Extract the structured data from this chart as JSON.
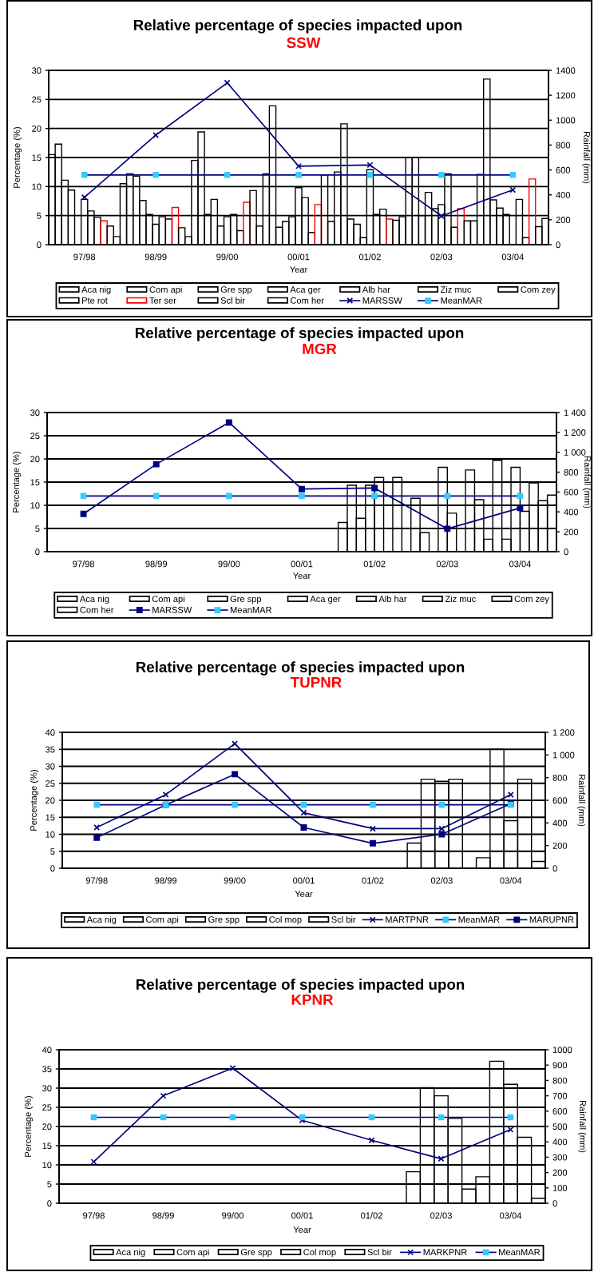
{
  "chart_data": [
    {
      "type": "bar",
      "title": "Relative percentage of species impacted upon",
      "subtitle": "SSW",
      "xlabel": "Year",
      "ylabel": "Percentage (%)",
      "y2label": "Rainfall (mm)",
      "categories": [
        "97/98",
        "98/99",
        "99/00",
        "00/01",
        "01/02",
        "02/03",
        "03/04"
      ],
      "ylim": [
        0,
        30
      ],
      "yticks": [
        0,
        5,
        10,
        15,
        20,
        25,
        30
      ],
      "y2lim": [
        0,
        1400
      ],
      "y2ticks": [
        0,
        200,
        400,
        600,
        800,
        1000,
        1200,
        1400
      ],
      "grid": true,
      "legend": "bottom",
      "series": [
        {
          "name": "Aca nig",
          "color": "#000000",
          "values": [
            15.5,
            10.5,
            14.5,
            12.2,
            12.5,
            15.0,
            12.1
          ]
        },
        {
          "name": "Com api",
          "color": "#000000",
          "values": [
            17.3,
            12.2,
            19.4,
            23.9,
            20.8,
            15.0,
            28.5
          ]
        },
        {
          "name": "Gre spp",
          "color": "#000000",
          "values": [
            11.1,
            11.8,
            5.2,
            3.0,
            4.4,
            5.0,
            7.7
          ]
        },
        {
          "name": "Aca ger",
          "color": "#000000",
          "values": [
            9.4,
            7.6,
            7.8,
            4.0,
            3.5,
            9.0,
            6.3
          ]
        },
        {
          "name": "Alb har",
          "color": "#000000",
          "values": [
            null,
            5.2,
            3.2,
            4.8,
            1.2,
            6.2,
            5.2
          ]
        },
        {
          "name": "Ziz muc",
          "color": "#000000",
          "values": [
            7.8,
            3.5,
            4.8,
            9.8,
            12.9,
            6.9,
            null
          ]
        },
        {
          "name": "Com zey",
          "color": "#000000",
          "values": [
            5.8,
            4.8,
            5.2,
            8.1,
            5.2,
            12.2,
            7.8
          ]
        },
        {
          "name": "Pte rot",
          "color": "#000000",
          "values": [
            4.7,
            4.4,
            2.4,
            2.1,
            6.1,
            3.0,
            1.2
          ]
        },
        {
          "name": "Ter ser",
          "color": "#ff0000",
          "values": [
            4.1,
            6.4,
            7.3,
            6.9,
            4.4,
            6.2,
            11.3
          ]
        },
        {
          "name": "Scl bir",
          "color": "#000000",
          "values": [
            3.2,
            2.9,
            9.3,
            12.0,
            4.2,
            4.1,
            3.1
          ]
        },
        {
          "name": "Com her",
          "color": "#000000",
          "values": [
            1.4,
            1.4,
            3.2,
            4.0,
            4.8,
            4.1,
            4.5
          ]
        },
        {
          "name": "MARSSW",
          "type": "line",
          "axis": "y2",
          "marker": "cross",
          "color": "#000080",
          "values": [
            380,
            880,
            1300,
            630,
            640,
            230,
            440
          ]
        },
        {
          "name": "MeanMAR",
          "type": "line",
          "axis": "y2",
          "marker": "square",
          "color": "#000080",
          "colors": [
            "#33ccff",
            "#33ccff",
            "#33ccff",
            "#33ccff",
            "#33ccff",
            "#33ccff",
            "#33ccff"
          ],
          "values": [
            560,
            560,
            560,
            560,
            560,
            560,
            560
          ]
        }
      ]
    },
    {
      "type": "bar",
      "title": "Relative percentage of species impacted upon",
      "subtitle": "MGR",
      "xlabel": "Year",
      "ylabel": "Percentage (%)",
      "y2label": "Rainfall (mm)",
      "categories": [
        "97/98",
        "98/99",
        "99/00",
        "00/01",
        "01/02",
        "02/03",
        "03/04"
      ],
      "ylim": [
        0,
        30
      ],
      "yticks": [
        0,
        5,
        10,
        15,
        20,
        25,
        30
      ],
      "y2lim": [
        0,
        1400
      ],
      "y2ticks": [
        0,
        200,
        400,
        600,
        800,
        {
          "value": 1000,
          "label": "1 000"
        },
        {
          "value": 1200,
          "label": "1 200"
        },
        {
          "value": 1400,
          "label": "1 400"
        }
      ],
      "grid": true,
      "legend": "bottom",
      "series": [
        {
          "name": "Aca nig",
          "color": "#000000",
          "values": [
            null,
            null,
            null,
            null,
            6.3,
            11.5,
            2.7
          ]
        },
        {
          "name": "Com api",
          "color": "#000000",
          "values": [
            null,
            null,
            null,
            null,
            14.3,
            4.1,
            19.7
          ]
        },
        {
          "name": "Gre spp",
          "color": "#000000",
          "values": [
            null,
            null,
            null,
            null,
            7.2,
            null,
            2.7
          ]
        },
        {
          "name": "Aca ger",
          "color": "#000000",
          "values": [
            null,
            null,
            null,
            null,
            14.3,
            18.2,
            18.2
          ]
        },
        {
          "name": "Alb har",
          "color": "#000000",
          "values": [
            null,
            null,
            null,
            null,
            16.0,
            8.3,
            8.7
          ]
        },
        {
          "name": "Ziz muc",
          "color": "#000000",
          "values": [
            null,
            null,
            null,
            null,
            null,
            null,
            14.8
          ]
        },
        {
          "name": "Com zey",
          "color": "#000000",
          "values": [
            null,
            null,
            null,
            null,
            16.0,
            17.6,
            11.0
          ]
        },
        {
          "name": "Com her",
          "color": "#000000",
          "values": [
            null,
            null,
            null,
            null,
            null,
            11.2,
            12.2
          ]
        },
        {
          "name": "MARSSW",
          "type": "line",
          "axis": "y2",
          "marker": "square",
          "color": "#000080",
          "values": [
            380,
            880,
            1300,
            630,
            640,
            230,
            440
          ]
        },
        {
          "name": "MeanMAR",
          "type": "line",
          "axis": "y2",
          "marker": "square",
          "color": "#000080",
          "colors": [
            "#33ccff",
            "#33ccff",
            "#33ccff",
            "#33ccff",
            "#33ccff",
            "#33ccff",
            "#33ccff"
          ],
          "values": [
            560,
            560,
            560,
            560,
            560,
            560,
            560
          ]
        }
      ]
    },
    {
      "type": "bar",
      "title": "Relative percentage of species impacted upon",
      "subtitle": "TUPNR",
      "xlabel": "Year",
      "ylabel": "Percentage (%)",
      "y2label": "Rainfall (mm)",
      "categories": [
        "97/98",
        "98/99",
        "99/00",
        "00/01",
        "01/02",
        "02/03",
        "03/04"
      ],
      "ylim": [
        0,
        40
      ],
      "yticks": [
        0,
        5,
        10,
        15,
        20,
        25,
        30,
        35,
        40
      ],
      "y2lim": [
        0,
        1200
      ],
      "y2ticks": [
        0,
        200,
        400,
        600,
        800,
        {
          "value": 1000,
          "label": "1 000"
        },
        {
          "value": 1200,
          "label": "1 200"
        }
      ],
      "grid": true,
      "legend": "bottom",
      "series": [
        {
          "name": "Aca nig",
          "color": "#000000",
          "values": [
            null,
            null,
            null,
            null,
            null,
            7.4,
            3.1
          ]
        },
        {
          "name": "Com api",
          "color": "#000000",
          "values": [
            null,
            null,
            null,
            null,
            null,
            26.2,
            35.0
          ]
        },
        {
          "name": "Gre spp",
          "color": "#000000",
          "values": [
            null,
            null,
            null,
            null,
            null,
            25.6,
            14.0
          ]
        },
        {
          "name": "Col mop",
          "color": "#000000",
          "values": [
            null,
            null,
            null,
            null,
            null,
            26.2,
            26.2
          ]
        },
        {
          "name": "Scl bir",
          "color": "#000000",
          "values": [
            null,
            null,
            null,
            null,
            null,
            null,
            2.0
          ]
        },
        {
          "name": "MARTPNR",
          "type": "line",
          "axis": "y2",
          "marker": "cross",
          "color": "#000080",
          "values": [
            360,
            650,
            1100,
            490,
            350,
            350,
            650
          ]
        },
        {
          "name": "MeanMAR",
          "type": "line",
          "axis": "y2",
          "marker": "square",
          "color": "#000080",
          "colors": [
            "#33ccff",
            "#33ccff",
            "#33ccff",
            "#33ccff",
            "#33ccff",
            "#33ccff",
            "#33ccff"
          ],
          "values": [
            560,
            560,
            560,
            560,
            560,
            560,
            560
          ]
        },
        {
          "name": "MARUPNR",
          "type": "line",
          "axis": "y2",
          "marker": "square",
          "color": "#000080",
          "values": [
            270,
            560,
            830,
            360,
            220,
            300,
            570
          ]
        }
      ]
    },
    {
      "type": "bar",
      "title": "Relative percentage of species impacted upon",
      "subtitle": "KPNR",
      "xlabel": "Year",
      "ylabel": "Percentage (%)",
      "y2label": "Rainfall (mm)",
      "categories": [
        "97/98",
        "98/99",
        "99/00",
        "00/01",
        "01/02",
        "02/03",
        "03/04"
      ],
      "ylim": [
        0,
        40
      ],
      "yticks": [
        0,
        5,
        10,
        15,
        20,
        25,
        30,
        35,
        40
      ],
      "y2lim": [
        0,
        1000
      ],
      "y2ticks": [
        0,
        100,
        200,
        300,
        400,
        500,
        600,
        700,
        800,
        900,
        1000
      ],
      "grid": true,
      "legend": "bottom",
      "series": [
        {
          "name": "Aca nig",
          "color": "#000000",
          "values": [
            null,
            null,
            null,
            null,
            null,
            8.2,
            6.9
          ]
        },
        {
          "name": "Com api",
          "color": "#000000",
          "values": [
            null,
            null,
            null,
            null,
            null,
            30.1,
            37.0
          ]
        },
        {
          "name": "Gre spp",
          "color": "#000000",
          "values": [
            null,
            null,
            null,
            null,
            null,
            28.0,
            31.0
          ]
        },
        {
          "name": "Col mop",
          "color": "#000000",
          "values": [
            null,
            null,
            null,
            null,
            null,
            22.1,
            17.2
          ]
        },
        {
          "name": "Scl bir",
          "color": "#000000",
          "values": [
            null,
            null,
            null,
            null,
            null,
            3.7,
            1.3
          ]
        },
        {
          "name": "MARKPNR",
          "type": "line",
          "axis": "y2",
          "marker": "cross",
          "color": "#000080",
          "values": [
            270,
            700,
            880,
            540,
            410,
            290,
            480
          ]
        },
        {
          "name": "MeanMAR",
          "type": "line",
          "axis": "y2",
          "marker": "square",
          "color": "#000080",
          "colors": [
            "#33ccff",
            "#33ccff",
            "#33ccff",
            "#33ccff",
            "#33ccff",
            "#33ccff",
            "#33ccff"
          ],
          "values": [
            560,
            560,
            560,
            560,
            560,
            560,
            560
          ]
        }
      ]
    }
  ]
}
